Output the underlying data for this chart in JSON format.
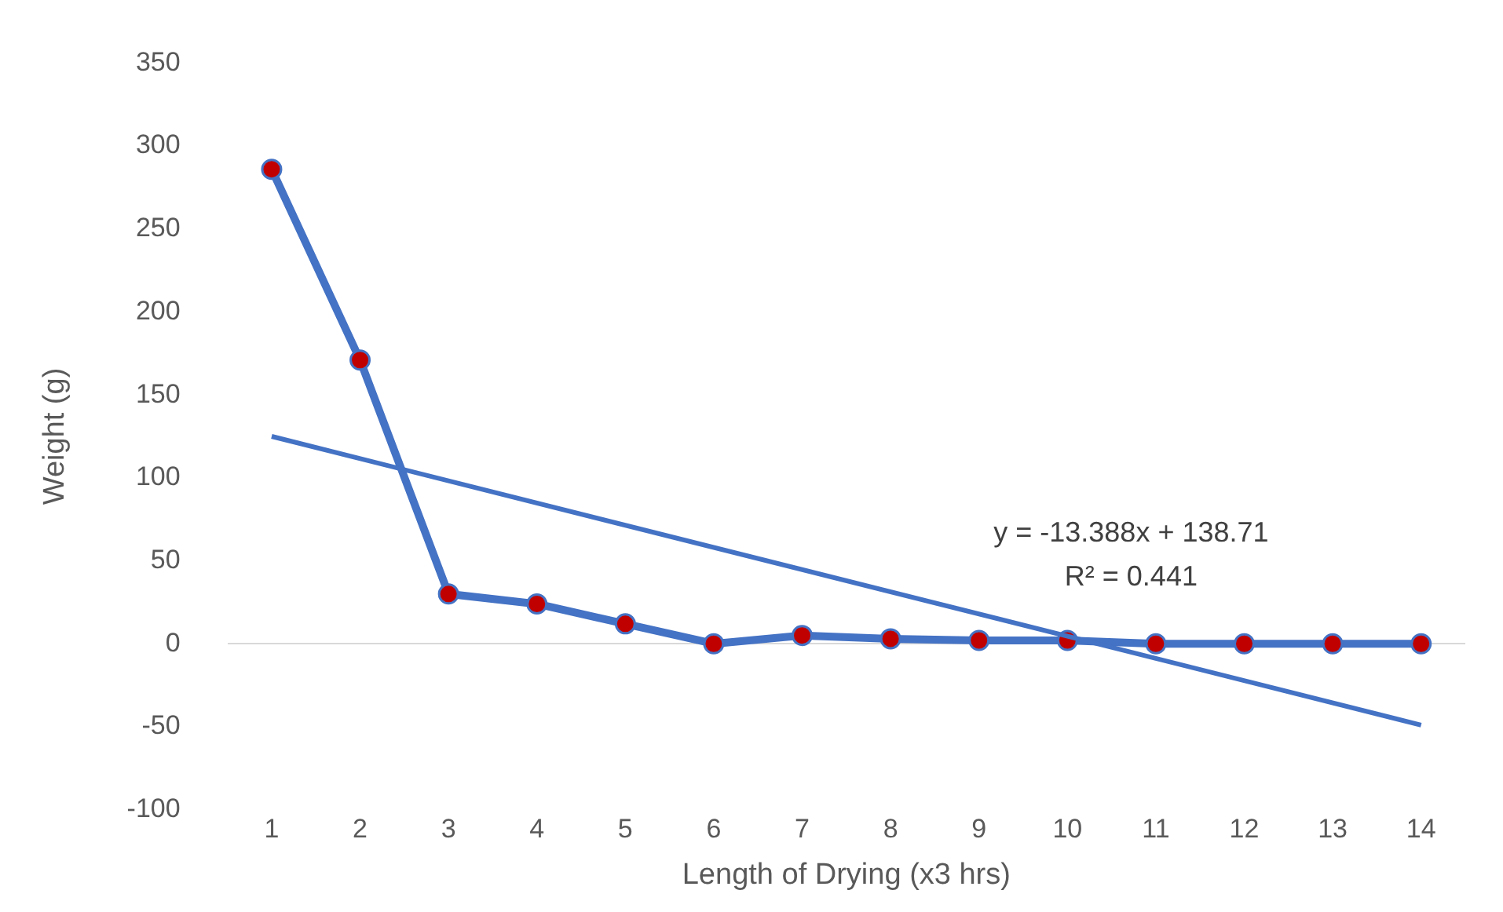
{
  "chart_data": {
    "type": "line",
    "xlabel": "Length of Drying (x3 hrs)",
    "ylabel": "Weight (g)",
    "x": [
      1,
      2,
      3,
      4,
      5,
      6,
      7,
      8,
      9,
      10,
      11,
      12,
      13,
      14
    ],
    "xlim": [
      0.5,
      14.5
    ],
    "xticks": [
      1,
      2,
      3,
      4,
      5,
      6,
      7,
      8,
      9,
      10,
      11,
      12,
      13,
      14
    ],
    "ylim": [
      -100,
      350
    ],
    "yticks": [
      -100,
      -50,
      0,
      50,
      100,
      150,
      200,
      250,
      300,
      350
    ],
    "grid": "y",
    "marker": "circle",
    "legend": false,
    "series": [
      {
        "color": "#4472c4",
        "colors": [
          "#c00000",
          "#c00000",
          "#c00000",
          "#c00000",
          "#c00000",
          "#c00000",
          "#c00000",
          "#c00000",
          "#c00000",
          "#c00000",
          "#c00000",
          "#c00000",
          "#c00000",
          "#c00000"
        ],
        "values": [
          286,
          171,
          30,
          24,
          12,
          0,
          5,
          3,
          2,
          2,
          0,
          0,
          0,
          0
        ]
      },
      {
        "x": [
          1,
          14
        ],
        "color": "#4472c4",
        "marker": "none",
        "values": [
          125,
          -49
        ]
      }
    ],
    "annotations": [
      "y = -13.388x + 138.71",
      "R² = 0.441"
    ]
  }
}
